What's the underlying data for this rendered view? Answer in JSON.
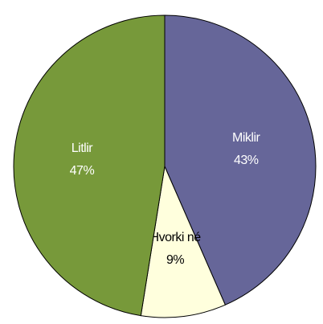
{
  "chart_data": {
    "type": "pie",
    "categories": [
      "Miklir",
      "Hvorki né",
      "Litlir"
    ],
    "values": [
      43,
      9,
      47
    ],
    "value_labels": [
      "43%",
      "9%",
      "47%"
    ],
    "colors": [
      "#666699",
      "#ffffdd",
      "#77993a"
    ],
    "label_colors": [
      "#ffffff",
      "#000000",
      "#ffffff"
    ]
  }
}
